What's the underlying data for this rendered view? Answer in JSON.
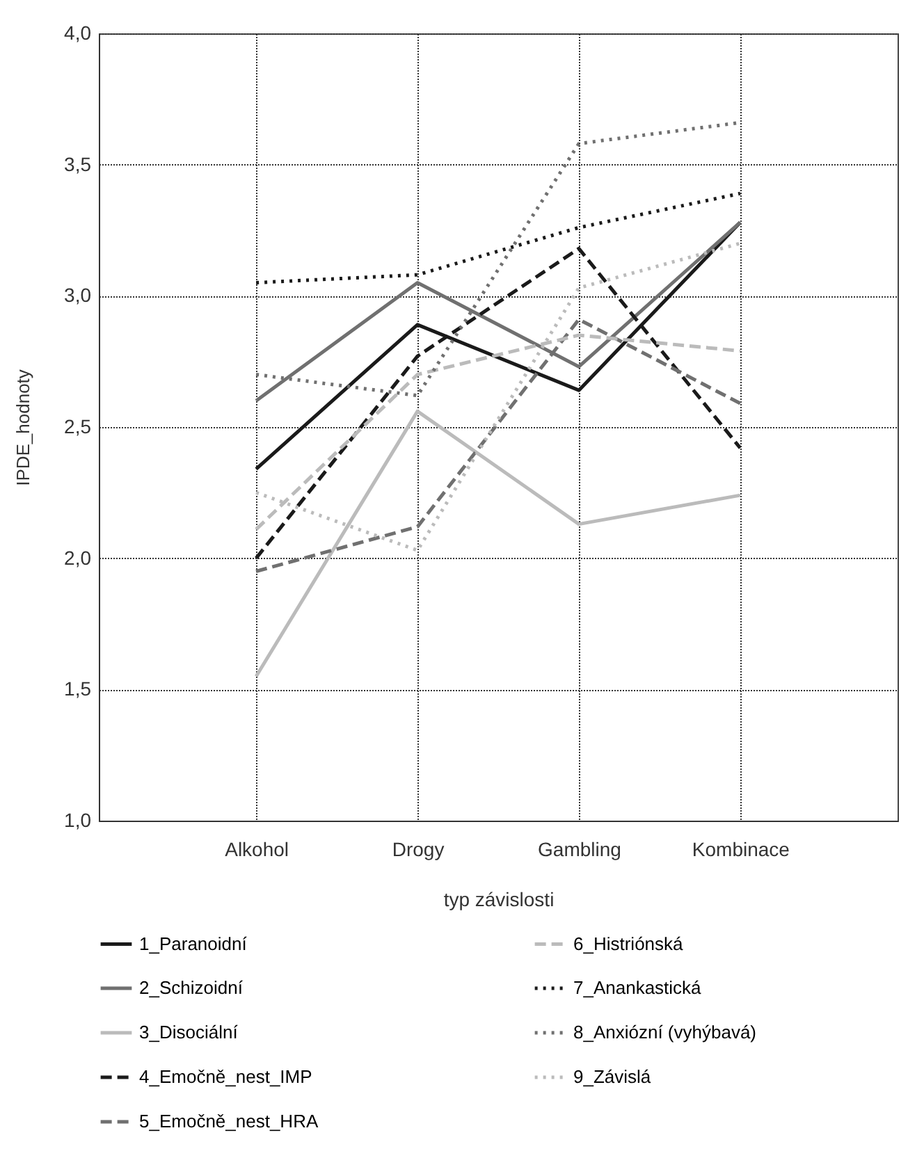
{
  "chart_data": {
    "type": "line",
    "xlabel": "typ závislosti",
    "ylabel": "IPDE_hodnoty",
    "categories": [
      "Alkohol",
      "Drogy",
      "Gambling",
      "Kombinace"
    ],
    "ylim": [
      1,
      4
    ],
    "yticks": [
      {
        "value": 1,
        "label": "1,0"
      },
      {
        "value": 1.5,
        "label": "1,5"
      },
      {
        "value": 2,
        "label": "2,0"
      },
      {
        "value": 2.5,
        "label": "2,5"
      },
      {
        "value": 3,
        "label": "3,0"
      },
      {
        "value": 3.5,
        "label": "3,5"
      },
      {
        "value": 4,
        "label": "4,0"
      }
    ],
    "grid": true,
    "legend": "bottom",
    "marker": "none",
    "series": [
      {
        "name": "1_Paranoidní",
        "color": "#1a1a1a",
        "line_style": "solid",
        "values": [
          2.34,
          2.89,
          2.64,
          3.28
        ]
      },
      {
        "name": "2_Schizoidní",
        "color": "#707070",
        "line_style": "solid",
        "values": [
          2.6,
          3.05,
          2.73,
          3.28
        ]
      },
      {
        "name": "3_Disociální",
        "color": "#bbbbbb",
        "line_style": "solid",
        "values": [
          1.55,
          2.56,
          2.13,
          2.24
        ]
      },
      {
        "name": "4_Emočně_nest_IMP",
        "color": "#1a1a1a",
        "line_style": "dashed",
        "values": [
          2.0,
          2.77,
          3.18,
          2.42
        ]
      },
      {
        "name": "5_Emočně_nest_HRA",
        "color": "#707070",
        "line_style": "dashed",
        "values": [
          1.95,
          2.12,
          2.91,
          2.59
        ]
      },
      {
        "name": "6_Histriónská",
        "color": "#bbbbbb",
        "line_style": "dashed",
        "values": [
          2.11,
          2.7,
          2.85,
          2.79
        ]
      },
      {
        "name": "7_Anankastická",
        "color": "#1a1a1a",
        "line_style": "dotted",
        "values": [
          3.05,
          3.08,
          3.26,
          3.39
        ]
      },
      {
        "name": "8_Anxiózní (vyhýbavá)",
        "color": "#707070",
        "line_style": "dotted",
        "values": [
          2.7,
          2.62,
          3.58,
          3.66
        ]
      },
      {
        "name": "9_Závislá",
        "color": "#bbbbbb",
        "line_style": "dotted",
        "values": [
          2.25,
          2.03,
          3.03,
          3.2
        ]
      }
    ]
  }
}
